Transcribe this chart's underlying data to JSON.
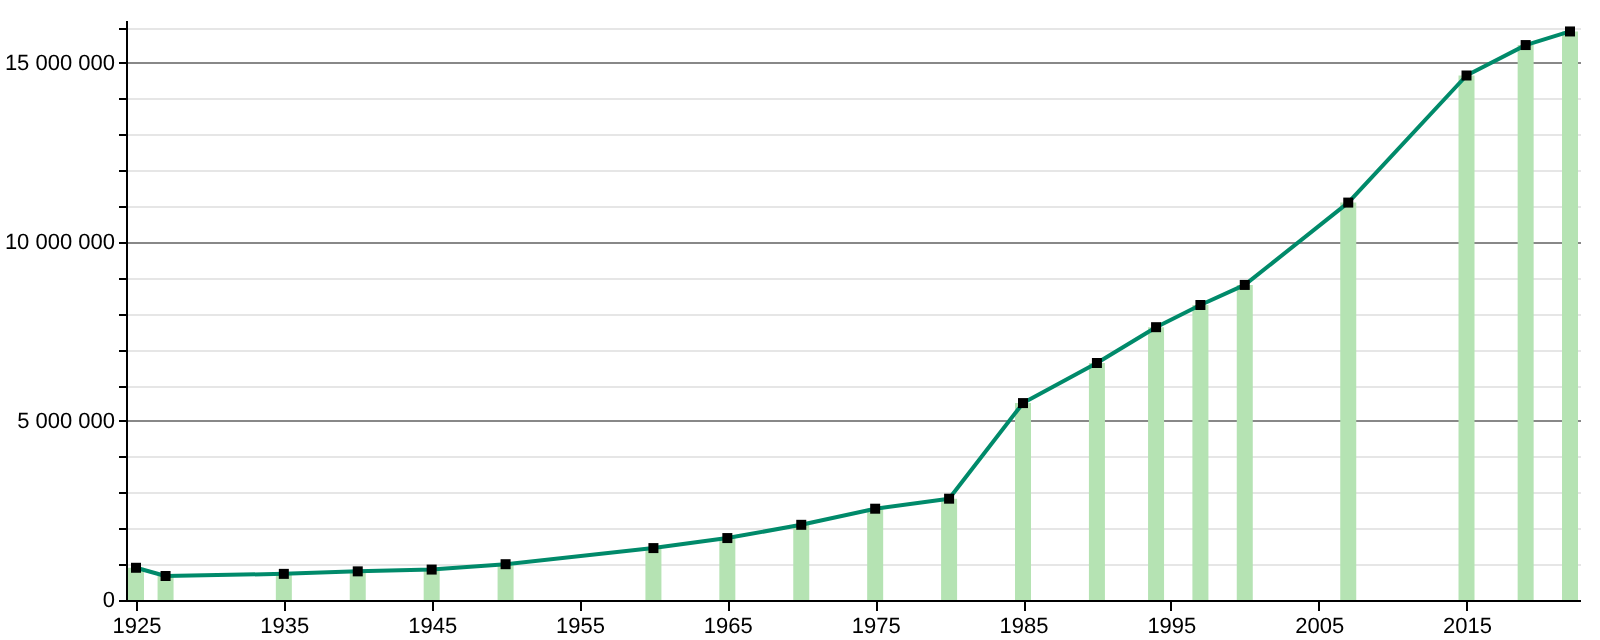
{
  "chart_data": {
    "type": "line",
    "x": [
      1925,
      1927,
      1935,
      1940,
      1945,
      1950,
      1960,
      1965,
      1970,
      1975,
      1980,
      1985,
      1990,
      1994,
      1997,
      2000,
      2007,
      2015,
      2019,
      2022
    ],
    "series": [
      {
        "type": "bar",
        "color": "#b5e3b3",
        "values": [
          900000,
          670000,
          730000,
          800000,
          850000,
          1000000,
          1450000,
          1730000,
          2100000,
          2550000,
          2830000,
          5500000,
          6620000,
          7620000,
          8240000,
          8800000,
          11100000,
          14650000,
          15500000,
          15880000
        ]
      },
      {
        "color": "#008a6a",
        "values": [
          900000,
          670000,
          730000,
          800000,
          850000,
          1000000,
          1450000,
          1730000,
          2100000,
          2550000,
          2830000,
          5500000,
          6620000,
          7620000,
          8240000,
          8800000,
          11100000,
          14650000,
          15500000,
          15880000
        ]
      }
    ],
    "xlim": [
      1925,
      2022
    ],
    "xticks": [
      1925,
      1935,
      1945,
      1955,
      1965,
      1975,
      1985,
      1995,
      2005,
      2015
    ],
    "ylim": [
      0,
      16200000
    ],
    "yticks": [
      0,
      {
        "value": 1000000,
        "label": null
      },
      {
        "value": 2000000,
        "label": null
      },
      {
        "value": 3000000,
        "label": null
      },
      {
        "value": 4000000,
        "label": null
      },
      {
        "value": 5000000,
        "label": "5 000 000"
      },
      {
        "value": 6000000,
        "label": null
      },
      {
        "value": 7000000,
        "label": null
      },
      {
        "value": 8000000,
        "label": null
      },
      {
        "value": 9000000,
        "label": null
      },
      {
        "value": 10000000,
        "label": "10 000 000"
      },
      {
        "value": 11000000,
        "label": null
      },
      {
        "value": 12000000,
        "label": null
      },
      {
        "value": 13000000,
        "label": null
      },
      {
        "value": 14000000,
        "label": null
      },
      {
        "value": 15000000,
        "label": "15 000 000"
      },
      {
        "value": 16000000,
        "label": null
      }
    ],
    "grid": "y",
    "marker": "square",
    "line_style": "solid"
  }
}
